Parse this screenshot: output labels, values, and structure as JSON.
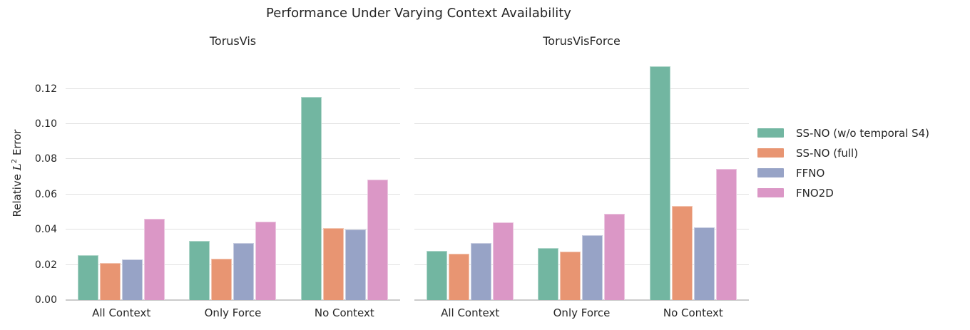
{
  "figure": {
    "title": "Performance Under Varying Context Availability"
  },
  "axes": {
    "ylabel_prefix": "Relative ",
    "ylabel_var": "L",
    "ylabel_sup": "2",
    "ylabel_suffix": " Error"
  },
  "chart_data": {
    "type": "bar",
    "title": "Performance Under Varying Context Availability",
    "ylabel": "Relative L^2 Error",
    "categories": [
      "All Context",
      "Only Force",
      "No Context"
    ],
    "ylim": [
      0,
      0.134
    ],
    "grid": true,
    "legend_position": "right",
    "yticks": [
      {
        "value": 0.0,
        "label": "0.00"
      },
      {
        "value": 0.02,
        "label": "0.02"
      },
      {
        "value": 0.04,
        "label": "0.04"
      },
      {
        "value": 0.06,
        "label": "0.06"
      },
      {
        "value": 0.08,
        "label": "0.08"
      },
      {
        "value": 0.1,
        "label": "0.10"
      },
      {
        "value": 0.12,
        "label": "0.12"
      }
    ],
    "subplots": [
      {
        "title": "TorusVis",
        "series": [
          {
            "name": "SS-NO (w/o temporal S4)",
            "color": "#72b6a1",
            "values": [
              0.0255,
              0.0335,
              0.1155
            ]
          },
          {
            "name": "SS-NO (full)",
            "color": "#e89572",
            "values": [
              0.0212,
              0.0235,
              0.041
            ]
          },
          {
            "name": "FFNO",
            "color": "#97a3c6",
            "values": [
              0.023,
              0.0325,
              0.04
            ]
          },
          {
            "name": "FNO2D",
            "color": "#db97c6",
            "values": [
              0.0462,
              0.0447,
              0.0683
            ]
          }
        ]
      },
      {
        "title": "TorusVisForce",
        "series": [
          {
            "name": "SS-NO (w/o temporal S4)",
            "color": "#72b6a1",
            "values": [
              0.0278,
              0.0295,
              0.1327
            ]
          },
          {
            "name": "SS-NO (full)",
            "color": "#e89572",
            "values": [
              0.0262,
              0.0276,
              0.0536
            ]
          },
          {
            "name": "FFNO",
            "color": "#97a3c6",
            "values": [
              0.0324,
              0.0368,
              0.0412
            ]
          },
          {
            "name": "FNO2D",
            "color": "#db97c6",
            "values": [
              0.044,
              0.049,
              0.0745
            ]
          }
        ]
      }
    ]
  },
  "legend": {
    "items": [
      {
        "label": "SS-NO (w/o temporal S4)",
        "color": "#72b6a1"
      },
      {
        "label": "SS-NO (full)",
        "color": "#e89572"
      },
      {
        "label": "FFNO",
        "color": "#97a3c6"
      },
      {
        "label": "FNO2D",
        "color": "#db97c6"
      }
    ]
  }
}
